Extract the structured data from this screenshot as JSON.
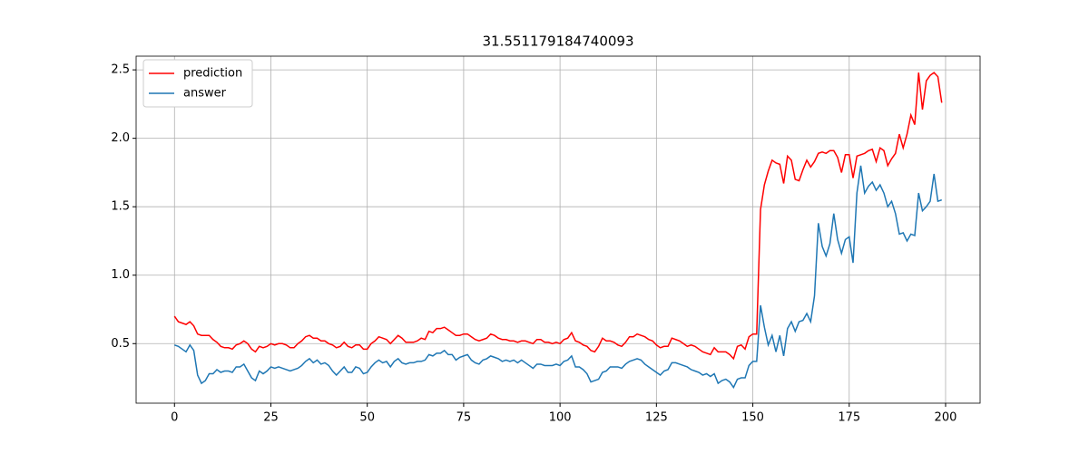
{
  "chart_data": {
    "type": "line",
    "title": "31.551179184740093",
    "x": [
      0,
      1,
      2,
      3,
      4,
      5,
      6,
      7,
      8,
      9,
      10,
      11,
      12,
      13,
      14,
      15,
      16,
      17,
      18,
      19,
      20,
      21,
      22,
      23,
      24,
      25,
      26,
      27,
      28,
      29,
      30,
      31,
      32,
      33,
      34,
      35,
      36,
      37,
      38,
      39,
      40,
      41,
      42,
      43,
      44,
      45,
      46,
      47,
      48,
      49,
      50,
      51,
      52,
      53,
      54,
      55,
      56,
      57,
      58,
      59,
      60,
      61,
      62,
      63,
      64,
      65,
      66,
      67,
      68,
      69,
      70,
      71,
      72,
      73,
      74,
      75,
      76,
      77,
      78,
      79,
      80,
      81,
      82,
      83,
      84,
      85,
      86,
      87,
      88,
      89,
      90,
      91,
      92,
      93,
      94,
      95,
      96,
      97,
      98,
      99,
      100,
      101,
      102,
      103,
      104,
      105,
      106,
      107,
      108,
      109,
      110,
      111,
      112,
      113,
      114,
      115,
      116,
      117,
      118,
      119,
      120,
      121,
      122,
      123,
      124,
      125,
      126,
      127,
      128,
      129,
      130,
      131,
      132,
      133,
      134,
      135,
      136,
      137,
      138,
      139,
      140,
      141,
      142,
      143,
      144,
      145,
      146,
      147,
      148,
      149,
      150,
      151,
      152,
      153,
      154,
      155,
      156,
      157,
      158,
      159,
      160,
      161,
      162,
      163,
      164,
      165,
      166,
      167,
      168,
      169,
      170,
      171,
      172,
      173,
      174,
      175,
      176,
      177,
      178,
      179,
      180,
      181,
      182,
      183,
      184,
      185,
      186,
      187,
      188,
      189,
      190,
      191,
      192,
      193,
      194,
      195,
      196,
      197,
      198,
      199
    ],
    "series": [
      {
        "name": "prediction",
        "color": "#ff0000",
        "values": [
          0.7,
          0.66,
          0.65,
          0.64,
          0.66,
          0.63,
          0.57,
          0.56,
          0.56,
          0.56,
          0.53,
          0.51,
          0.48,
          0.47,
          0.47,
          0.46,
          0.49,
          0.5,
          0.52,
          0.5,
          0.46,
          0.44,
          0.48,
          0.47,
          0.48,
          0.5,
          0.49,
          0.5,
          0.5,
          0.49,
          0.47,
          0.47,
          0.5,
          0.52,
          0.55,
          0.56,
          0.54,
          0.54,
          0.52,
          0.52,
          0.5,
          0.49,
          0.47,
          0.48,
          0.51,
          0.48,
          0.47,
          0.49,
          0.49,
          0.46,
          0.46,
          0.5,
          0.52,
          0.55,
          0.54,
          0.53,
          0.5,
          0.53,
          0.56,
          0.54,
          0.51,
          0.51,
          0.51,
          0.52,
          0.54,
          0.53,
          0.59,
          0.58,
          0.61,
          0.61,
          0.62,
          0.6,
          0.58,
          0.56,
          0.56,
          0.57,
          0.57,
          0.55,
          0.53,
          0.52,
          0.53,
          0.54,
          0.57,
          0.56,
          0.54,
          0.53,
          0.53,
          0.52,
          0.52,
          0.51,
          0.52,
          0.52,
          0.51,
          0.5,
          0.53,
          0.53,
          0.51,
          0.51,
          0.5,
          0.51,
          0.5,
          0.53,
          0.54,
          0.58,
          0.52,
          0.51,
          0.49,
          0.48,
          0.45,
          0.44,
          0.48,
          0.54,
          0.52,
          0.52,
          0.51,
          0.49,
          0.48,
          0.51,
          0.55,
          0.55,
          0.57,
          0.56,
          0.55,
          0.53,
          0.52,
          0.49,
          0.47,
          0.48,
          0.48,
          0.54,
          0.53,
          0.52,
          0.5,
          0.48,
          0.49,
          0.48,
          0.46,
          0.44,
          0.43,
          0.42,
          0.47,
          0.44,
          0.44,
          0.44,
          0.42,
          0.39,
          0.48,
          0.49,
          0.46,
          0.55,
          0.57,
          0.57,
          1.48,
          1.66,
          1.76,
          1.84,
          1.82,
          1.81,
          1.67,
          1.87,
          1.84,
          1.7,
          1.69,
          1.77,
          1.84,
          1.79,
          1.83,
          1.89,
          1.9,
          1.89,
          1.91,
          1.91,
          1.86,
          1.75,
          1.88,
          1.88,
          1.71,
          1.87,
          1.88,
          1.89,
          1.91,
          1.92,
          1.83,
          1.93,
          1.91,
          1.8,
          1.85,
          1.89,
          2.03,
          1.93,
          2.03,
          2.17,
          2.1,
          2.48,
          2.21,
          2.42,
          2.46,
          2.48,
          2.45,
          2.26
        ]
      },
      {
        "name": "answer",
        "color": "#1f77b4",
        "values": [
          0.49,
          0.48,
          0.46,
          0.44,
          0.49,
          0.45,
          0.27,
          0.21,
          0.23,
          0.28,
          0.28,
          0.31,
          0.29,
          0.3,
          0.3,
          0.29,
          0.33,
          0.33,
          0.35,
          0.3,
          0.25,
          0.23,
          0.3,
          0.28,
          0.3,
          0.33,
          0.32,
          0.33,
          0.32,
          0.31,
          0.3,
          0.31,
          0.32,
          0.34,
          0.37,
          0.39,
          0.36,
          0.38,
          0.35,
          0.36,
          0.34,
          0.3,
          0.27,
          0.3,
          0.33,
          0.29,
          0.29,
          0.33,
          0.32,
          0.28,
          0.29,
          0.33,
          0.36,
          0.38,
          0.36,
          0.37,
          0.33,
          0.37,
          0.39,
          0.36,
          0.35,
          0.36,
          0.36,
          0.37,
          0.37,
          0.38,
          0.42,
          0.41,
          0.43,
          0.43,
          0.45,
          0.42,
          0.42,
          0.38,
          0.4,
          0.41,
          0.42,
          0.38,
          0.36,
          0.35,
          0.38,
          0.39,
          0.41,
          0.4,
          0.39,
          0.37,
          0.38,
          0.37,
          0.38,
          0.36,
          0.38,
          0.36,
          0.34,
          0.32,
          0.35,
          0.35,
          0.34,
          0.34,
          0.34,
          0.35,
          0.34,
          0.37,
          0.38,
          0.41,
          0.33,
          0.33,
          0.31,
          0.28,
          0.22,
          0.23,
          0.24,
          0.29,
          0.3,
          0.33,
          0.33,
          0.33,
          0.32,
          0.35,
          0.37,
          0.38,
          0.39,
          0.38,
          0.35,
          0.33,
          0.31,
          0.29,
          0.27,
          0.3,
          0.31,
          0.36,
          0.36,
          0.35,
          0.34,
          0.33,
          0.31,
          0.3,
          0.29,
          0.27,
          0.28,
          0.26,
          0.28,
          0.21,
          0.23,
          0.24,
          0.22,
          0.18,
          0.24,
          0.25,
          0.25,
          0.34,
          0.37,
          0.37,
          0.78,
          0.62,
          0.49,
          0.56,
          0.44,
          0.56,
          0.41,
          0.61,
          0.66,
          0.59,
          0.66,
          0.67,
          0.72,
          0.66,
          0.85,
          1.38,
          1.21,
          1.14,
          1.23,
          1.45,
          1.26,
          1.16,
          1.26,
          1.28,
          1.09,
          1.6,
          1.8,
          1.6,
          1.65,
          1.68,
          1.62,
          1.66,
          1.6,
          1.5,
          1.54,
          1.45,
          1.3,
          1.31,
          1.25,
          1.3,
          1.29,
          1.6,
          1.47,
          1.5,
          1.54,
          1.74,
          1.54,
          1.55
        ]
      }
    ],
    "xlim": [
      -9.95,
      208.95
    ],
    "xticks": [
      0,
      25,
      50,
      75,
      100,
      125,
      150,
      175,
      200
    ],
    "ylim": [
      0.065,
      2.6
    ],
    "yticks": [
      0.5,
      {
        "value": 1.0,
        "label": "1.0"
      },
      1.5,
      {
        "value": 2.0,
        "label": "2.0"
      },
      2.5
    ],
    "grid": true,
    "legend": "upper left"
  }
}
